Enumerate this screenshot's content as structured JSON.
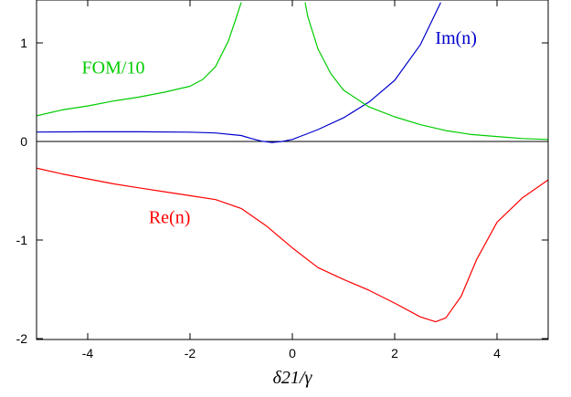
{
  "chart_data": {
    "type": "line",
    "xlabel": "δ21/γ",
    "xlim": [
      -5,
      5
    ],
    "ylim": [
      -2,
      1.4
    ],
    "x_ticks": [
      -4,
      -2,
      0,
      2,
      4
    ],
    "y_ticks": [
      -2,
      -1,
      0,
      1
    ],
    "x_tick_labels": [
      "-4",
      "-2",
      "0",
      "2",
      "4"
    ],
    "y_tick_labels": [
      "-2",
      "-1",
      "0",
      "1"
    ],
    "zero_line": true,
    "grid": false,
    "series": [
      {
        "name": "Re(n)",
        "color": "#ff0000",
        "x": [
          -5,
          -4.5,
          -4,
          -3.5,
          -3,
          -2.5,
          -2,
          -1.5,
          -1,
          -0.5,
          0,
          0.5,
          1,
          1.5,
          2,
          2.5,
          2.8,
          3,
          3.3,
          3.6,
          4,
          4.5,
          5
        ],
        "y": [
          -0.27,
          -0.33,
          -0.38,
          -0.43,
          -0.47,
          -0.51,
          -0.55,
          -0.59,
          -0.68,
          -0.86,
          -1.08,
          -1.28,
          -1.4,
          -1.51,
          -1.64,
          -1.78,
          -1.83,
          -1.79,
          -1.57,
          -1.2,
          -0.82,
          -0.57,
          -0.39
        ]
      },
      {
        "name": "Im(n)",
        "color": "#0000cc",
        "x": [
          -5,
          -4,
          -3,
          -2,
          -1.5,
          -1,
          -0.8,
          -0.6,
          -0.4,
          -0.2,
          0,
          0.2,
          0.5,
          1,
          1.5,
          2,
          2.5,
          2.9
        ],
        "y": [
          0.095,
          0.098,
          0.098,
          0.094,
          0.086,
          0.06,
          0.03,
          0.003,
          -0.01,
          0.0,
          0.02,
          0.06,
          0.12,
          0.24,
          0.4,
          0.62,
          0.98,
          1.41
        ]
      },
      {
        "name": "FOM/10",
        "color": "#00cc00",
        "x": [
          -5,
          -4.5,
          -4,
          -3.5,
          -3,
          -2.5,
          -2,
          -1.75,
          -1.5,
          -1.25,
          -1.1,
          -1.0,
          null,
          0.25,
          0.3,
          0.5,
          0.75,
          1,
          1.5,
          2,
          2.5,
          3,
          3.5,
          4,
          4.5,
          5
        ],
        "y": [
          0.26,
          0.32,
          0.36,
          0.41,
          0.45,
          0.5,
          0.56,
          0.63,
          0.76,
          1.02,
          1.25,
          1.41,
          null,
          1.41,
          1.27,
          0.94,
          0.69,
          0.52,
          0.35,
          0.25,
          0.17,
          0.11,
          0.07,
          0.05,
          0.03,
          0.02
        ]
      }
    ],
    "annotations": [
      {
        "text": "FOM/10",
        "x": -3.5,
        "y": 0.69,
        "color": "#00cc00"
      },
      {
        "text": "Im(n)",
        "x": 3.2,
        "y": 0.99,
        "color": "#0000cc"
      },
      {
        "text": "Re(n)",
        "x": -2.4,
        "y": -0.83,
        "color": "#ff0000"
      }
    ]
  }
}
